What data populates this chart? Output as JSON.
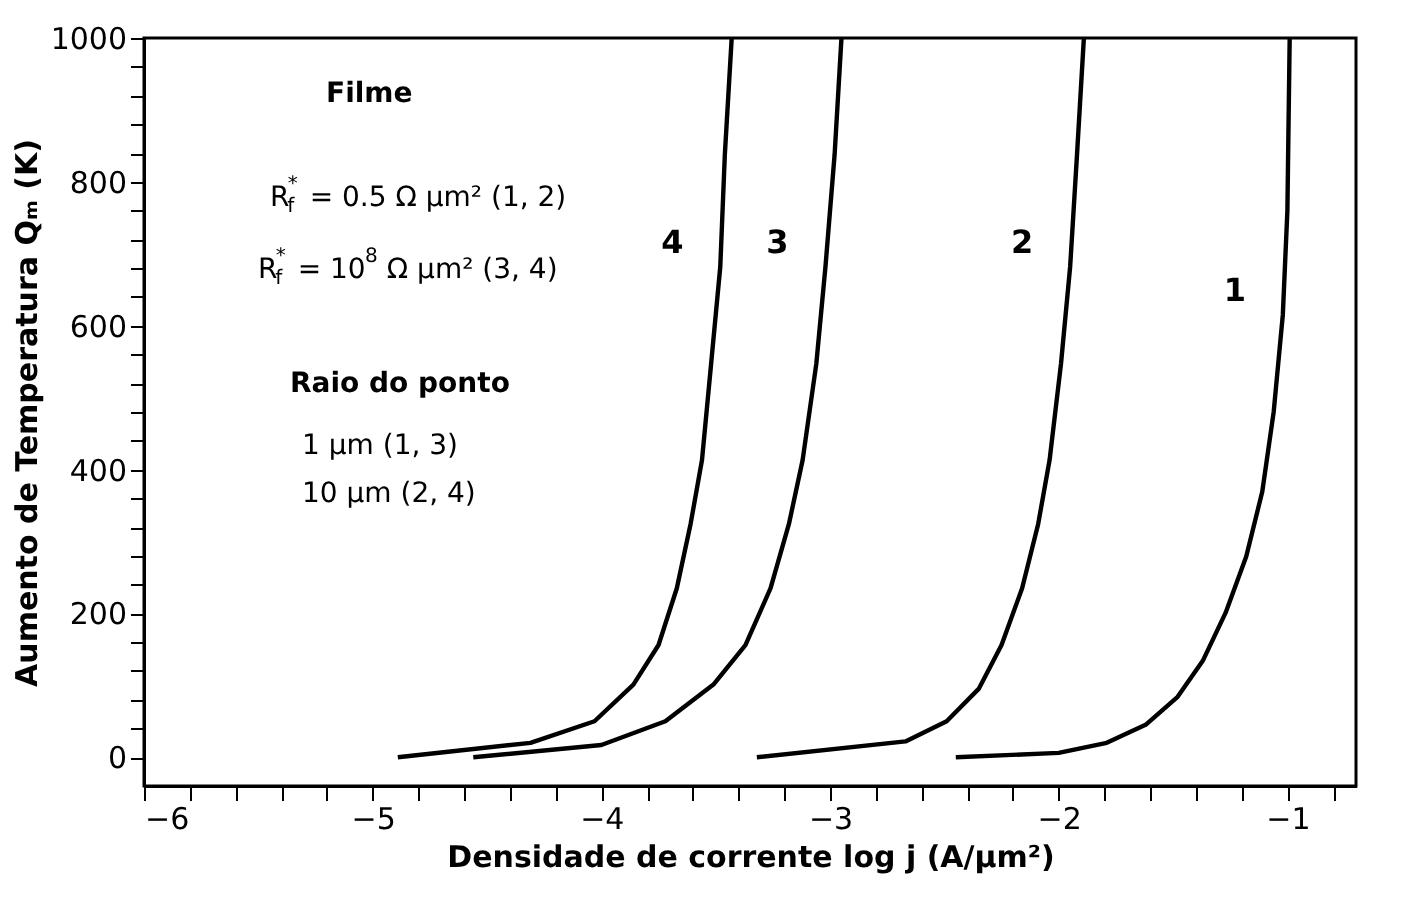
{
  "chart_data": {
    "type": "line",
    "xlabel": "Densidade de corrente log j (A/µm²)",
    "ylabel": "Aumento de Temperatura Qₘ (K)",
    "xlim": [
      -6,
      -0.7
    ],
    "ylim": [
      -40,
      1000
    ],
    "xticks": [
      -6,
      {
        "value": -5.8,
        "label": null
      },
      {
        "value": -5.6,
        "label": null
      },
      {
        "value": -5.4,
        "label": null
      },
      {
        "value": -5.2,
        "label": null
      },
      -5,
      {
        "value": -4.8,
        "label": null
      },
      {
        "value": -4.6,
        "label": null
      },
      {
        "value": -4.4,
        "label": null
      },
      {
        "value": -4.2,
        "label": null
      },
      -4,
      {
        "value": -3.8,
        "label": null
      },
      {
        "value": -3.6,
        "label": null
      },
      {
        "value": -3.4,
        "label": null
      },
      {
        "value": -3.2,
        "label": null
      },
      -3,
      {
        "value": -2.8,
        "label": null
      },
      {
        "value": -2.6,
        "label": null
      },
      {
        "value": -2.4,
        "label": null
      },
      {
        "value": -2.2,
        "label": null
      },
      -2,
      {
        "value": -1.8,
        "label": null
      },
      {
        "value": -1.6,
        "label": null
      },
      {
        "value": -1.4,
        "label": null
      },
      {
        "value": -1.2,
        "label": null
      },
      -1,
      {
        "value": -0.8,
        "label": null
      }
    ],
    "yticks": [
      0,
      {
        "value": 40,
        "label": null
      },
      {
        "value": 80,
        "label": null
      },
      {
        "value": 120,
        "label": null
      },
      {
        "value": 160,
        "label": null
      },
      200,
      {
        "value": 240,
        "label": null
      },
      {
        "value": 280,
        "label": null
      },
      {
        "value": 320,
        "label": null
      },
      {
        "value": 360,
        "label": null
      },
      400,
      {
        "value": 440,
        "label": null
      },
      {
        "value": 480,
        "label": null
      },
      {
        "value": 520,
        "label": null
      },
      {
        "value": 560,
        "label": null
      },
      600,
      {
        "value": 640,
        "label": null
      },
      {
        "value": 680,
        "label": null
      },
      {
        "value": 720,
        "label": null
      },
      {
        "value": 760,
        "label": null
      },
      800,
      {
        "value": 840,
        "label": null
      },
      {
        "value": 880,
        "label": null
      },
      {
        "value": 920,
        "label": null
      },
      {
        "value": 960,
        "label": null
      },
      1000
    ],
    "grid": false,
    "legend": false,
    "line_style": "solid",
    "marker": "none",
    "series": [
      {
        "name": "1",
        "color": "#000000",
        "x": [
          -2.45,
          -2.0,
          -1.79,
          -1.62,
          -1.48,
          -1.37,
          -1.27,
          -1.18,
          -1.11,
          -1.06,
          -1.02,
          -1.0,
          -0.99
        ],
        "values": [
          0,
          6,
          20,
          45,
          84,
          134,
          201,
          279,
          369,
          480,
          615,
          760,
          1000
        ]
      },
      {
        "name": "2",
        "color": "#000000",
        "x": [
          -3.32,
          -2.67,
          -2.49,
          -2.35,
          -2.25,
          -2.16,
          -2.09,
          -2.04,
          -1.99,
          -1.95,
          -1.92,
          -1.89
        ],
        "values": [
          0,
          22,
          50,
          95,
          156,
          235,
          324,
          413,
          547,
          682,
          838,
          1000
        ]
      },
      {
        "name": "3",
        "color": "#000000",
        "x": [
          -4.56,
          -4.0,
          -3.72,
          -3.51,
          -3.37,
          -3.26,
          -3.18,
          -3.12,
          -3.06,
          -3.02,
          -2.98,
          -2.95
        ],
        "values": [
          0,
          17,
          50,
          101,
          156,
          235,
          324,
          413,
          547,
          682,
          838,
          1000
        ]
      },
      {
        "name": "4",
        "color": "#000000",
        "x": [
          -4.89,
          -4.31,
          -4.03,
          -3.86,
          -3.75,
          -3.67,
          -3.61,
          -3.56,
          -3.52,
          -3.48,
          -3.46,
          -3.43
        ],
        "values": [
          0,
          20,
          50,
          101,
          156,
          235,
          324,
          413,
          547,
          682,
          838,
          1000
        ]
      }
    ],
    "annotations": [
      "Filme",
      "R$_{f}$$^{*}$ = 0.5 Ω µm² (1, 2)",
      "R$_{f}$$^{*}$ = 10$^{8}$ Ω µm² (3, 4)",
      "Raio do ponto",
      "1 µm (1, 3)",
      "10 µm (2, 4)"
    ]
  }
}
